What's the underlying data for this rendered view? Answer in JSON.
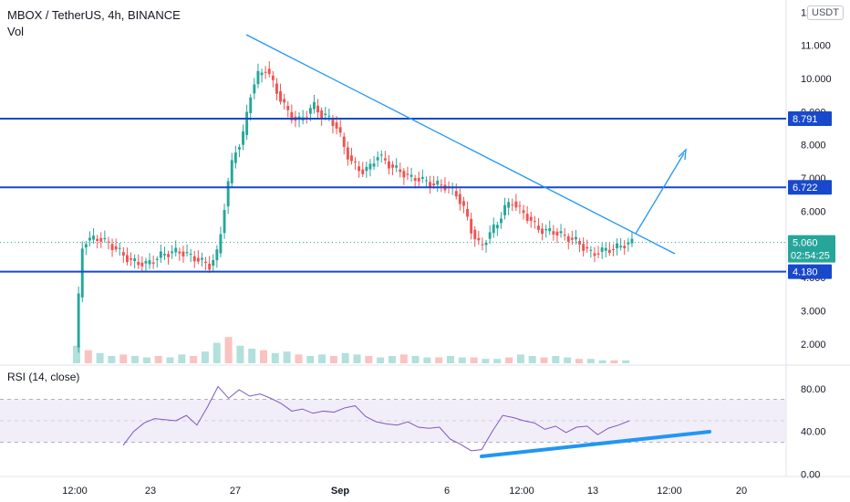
{
  "header": {
    "symbol_line": "MBOX / TetherUS, 4h, BINANCE",
    "volume_label": "Vol",
    "currency_badge": "USDT",
    "rsi_label": "RSI (14, close)"
  },
  "colors": {
    "up": "#26a69a",
    "down": "#ef5350",
    "level_line": "#1848cc",
    "trend_line": "#2196f3",
    "price_tag": "#26a69a",
    "rsi_line": "#7e57c2",
    "rsi_band": "#ede7f6"
  },
  "chart_data": [
    {
      "type": "candlestick",
      "title": "MBOX / TetherUS, 4h, BINANCE",
      "y_ticks": [
        "12.000",
        "11.000",
        "10.000",
        "9.000",
        "8.000",
        "7.000",
        "6.000",
        "5.000",
        "4.000",
        "3.000",
        "2.000"
      ],
      "x_ticks": [
        "12:00",
        "23",
        "27",
        "Sep",
        "6",
        "12:00",
        "13",
        "12:00",
        "20"
      ],
      "ylim": [
        1.2,
        12.2
      ],
      "price_path": [
        [
          0,
          1.9
        ],
        [
          2,
          5.1
        ],
        [
          6,
          5.2
        ],
        [
          10,
          4.9
        ],
        [
          14,
          4.5
        ],
        [
          18,
          4.4
        ],
        [
          22,
          4.7
        ],
        [
          26,
          4.8
        ],
        [
          30,
          4.6
        ],
        [
          34,
          4.35
        ],
        [
          36,
          4.8
        ],
        [
          38,
          6.5
        ],
        [
          40,
          7.8
        ],
        [
          42,
          8.1
        ],
        [
          44,
          9.5
        ],
        [
          46,
          10.1
        ],
        [
          48,
          10.3
        ],
        [
          50,
          9.8
        ],
        [
          52,
          9.3
        ],
        [
          54,
          8.9
        ],
        [
          56,
          8.7
        ],
        [
          58,
          8.9
        ],
        [
          60,
          9.2
        ],
        [
          62,
          8.9
        ],
        [
          64,
          8.8
        ],
        [
          66,
          8.5
        ],
        [
          68,
          7.8
        ],
        [
          70,
          7.4
        ],
        [
          72,
          7.2
        ],
        [
          74,
          7.3
        ],
        [
          76,
          7.7
        ],
        [
          78,
          7.5
        ],
        [
          80,
          7.3
        ],
        [
          82,
          7.2
        ],
        [
          84,
          7.0
        ],
        [
          86,
          7.0
        ],
        [
          88,
          6.9
        ],
        [
          90,
          6.8
        ],
        [
          92,
          6.8
        ],
        [
          94,
          6.7
        ],
        [
          96,
          6.5
        ],
        [
          98,
          6.0
        ],
        [
          100,
          5.3
        ],
        [
          102,
          4.9
        ],
        [
          104,
          5.3
        ],
        [
          106,
          5.6
        ],
        [
          108,
          6.1
        ],
        [
          110,
          6.3
        ],
        [
          112,
          6.0
        ],
        [
          114,
          5.8
        ],
        [
          116,
          5.5
        ],
        [
          118,
          5.4
        ],
        [
          120,
          5.4
        ],
        [
          122,
          5.3
        ],
        [
          124,
          5.2
        ],
        [
          126,
          5.1
        ],
        [
          128,
          4.9
        ],
        [
          130,
          4.7
        ],
        [
          132,
          4.8
        ],
        [
          134,
          4.85
        ],
        [
          136,
          4.9
        ],
        [
          138,
          5.0
        ],
        [
          140,
          5.06
        ]
      ],
      "levels": [
        {
          "value": 8.791,
          "label": "8.791"
        },
        {
          "value": 6.722,
          "label": "6.722"
        },
        {
          "value": 4.18,
          "label": "4.180"
        }
      ],
      "last_price": {
        "value": 5.06,
        "label": "5.060",
        "countdown": "02:54:25"
      },
      "volume": [
        12,
        9,
        7,
        5,
        6,
        5,
        4,
        5,
        4,
        6,
        5,
        8,
        14,
        18,
        12,
        10,
        9,
        7,
        8,
        6,
        5,
        6,
        5,
        7,
        6,
        5,
        4,
        5,
        6,
        5,
        4,
        4,
        5,
        4,
        4,
        3,
        3,
        4,
        6,
        5,
        4,
        5,
        4,
        3,
        3,
        2,
        2,
        2
      ]
    },
    {
      "type": "line",
      "title": "RSI (14, close)",
      "y_ticks": [
        "80.00",
        "40.00",
        "0.00"
      ],
      "ylim": [
        -2,
        102
      ],
      "bands": [
        70,
        50,
        30
      ],
      "rsi_path": [
        [
          0,
          27
        ],
        [
          2,
          40
        ],
        [
          4,
          48
        ],
        [
          6,
          52
        ],
        [
          8,
          51
        ],
        [
          10,
          50
        ],
        [
          12,
          55
        ],
        [
          14,
          46
        ],
        [
          16,
          63
        ],
        [
          18,
          82
        ],
        [
          20,
          71
        ],
        [
          22,
          79
        ],
        [
          24,
          73
        ],
        [
          26,
          75
        ],
        [
          28,
          71
        ],
        [
          30,
          66
        ],
        [
          32,
          59
        ],
        [
          34,
          61
        ],
        [
          36,
          57
        ],
        [
          38,
          59
        ],
        [
          40,
          58
        ],
        [
          42,
          62
        ],
        [
          44,
          64
        ],
        [
          46,
          54
        ],
        [
          48,
          49
        ],
        [
          50,
          47
        ],
        [
          52,
          46
        ],
        [
          54,
          49
        ],
        [
          56,
          44
        ],
        [
          58,
          43
        ],
        [
          60,
          44
        ],
        [
          62,
          33
        ],
        [
          64,
          28
        ],
        [
          66,
          22
        ],
        [
          68,
          23
        ],
        [
          70,
          40
        ],
        [
          72,
          55
        ],
        [
          74,
          53
        ],
        [
          76,
          50
        ],
        [
          78,
          48
        ],
        [
          80,
          42
        ],
        [
          82,
          45
        ],
        [
          84,
          39
        ],
        [
          86,
          44
        ],
        [
          88,
          45
        ],
        [
          90,
          37
        ],
        [
          92,
          43
        ],
        [
          94,
          46
        ],
        [
          96,
          50
        ]
      ]
    }
  ]
}
